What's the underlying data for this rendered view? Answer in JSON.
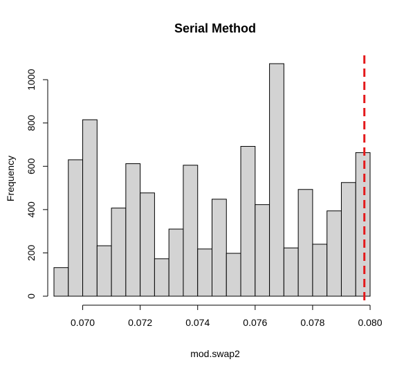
{
  "chart_data": {
    "type": "bar",
    "title": "Serial Method",
    "xlabel": "mod.swap2",
    "ylabel": "Frequency",
    "bin_edges": [
      0.069,
      0.0695,
      0.07,
      0.0705,
      0.071,
      0.0715,
      0.072,
      0.0725,
      0.073,
      0.0735,
      0.074,
      0.0745,
      0.075,
      0.0755,
      0.076,
      0.0765,
      0.077,
      0.0775,
      0.078,
      0.0785,
      0.079,
      0.0795,
      0.08
    ],
    "values": [
      132,
      630,
      815,
      233,
      407,
      612,
      477,
      173,
      310,
      605,
      218,
      448,
      198,
      692,
      423,
      1074,
      223,
      493,
      240,
      394,
      525,
      663
    ],
    "xlim": [
      0.069,
      0.08
    ],
    "ylim": [
      0,
      1074
    ],
    "xticks": [
      0.07,
      0.072,
      0.074,
      0.076,
      0.078,
      0.08
    ],
    "xtick_labels": [
      "0.070",
      "0.072",
      "0.074",
      "0.076",
      "0.078",
      "0.080"
    ],
    "yticks": [
      0,
      200,
      400,
      600,
      800,
      1000
    ],
    "ytick_labels": [
      "0",
      "200",
      "400",
      "600",
      "800",
      "1000"
    ],
    "reference_line": {
      "x": 0.0798,
      "color": "#e41a1c",
      "style": "dashed"
    },
    "bar_fill": "#d3d3d3",
    "bar_stroke": "#000000",
    "grid": false
  }
}
